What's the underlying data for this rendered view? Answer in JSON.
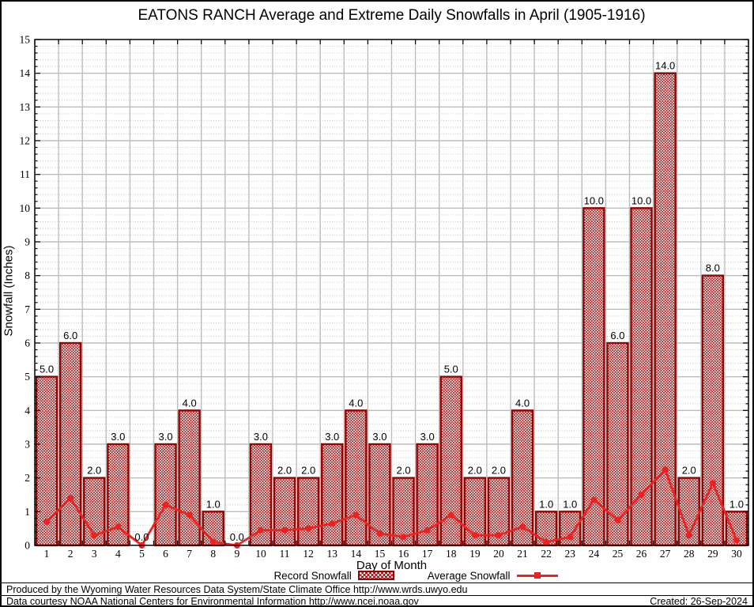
{
  "chart_data": {
    "type": "bar",
    "title": "EATONS RANCH Average and Extreme Daily Snowfalls in April (1905-1916)",
    "xlabel": "Day of Month",
    "ylabel": "Snowfall (Inches)",
    "ylim": [
      0,
      15
    ],
    "y_tick_step": 1,
    "y_minor_per_major": 5,
    "grid": {
      "major": true,
      "minor": true
    },
    "legend_position": "bottom",
    "categories": [
      1,
      2,
      3,
      4,
      5,
      6,
      7,
      8,
      9,
      10,
      11,
      12,
      13,
      14,
      15,
      16,
      17,
      18,
      19,
      20,
      21,
      22,
      23,
      24,
      25,
      26,
      27,
      28,
      29,
      30
    ],
    "series": [
      {
        "name": "Record Snowfall",
        "type": "bar",
        "color": "#990000",
        "values": [
          5,
          6,
          2,
          3,
          0,
          3,
          4,
          1,
          0,
          3,
          2,
          2,
          3,
          4,
          3,
          2,
          3,
          5,
          2,
          2,
          4,
          1,
          1,
          10,
          6,
          10,
          14,
          2,
          8,
          1
        ],
        "value_labels": [
          "5.0",
          "6.0",
          "2.0",
          "3.0",
          "0.0",
          "3.0",
          "4.0",
          "1.0",
          "0.0",
          "3.0",
          "2.0",
          "2.0",
          "3.0",
          "4.0",
          "3.0",
          "2.0",
          "3.0",
          "5.0",
          "2.0",
          "2.0",
          "4.0",
          "1.0",
          "1.0",
          "10.0",
          "6.0",
          "10.0",
          "14.0",
          "2.0",
          "8.0",
          "1.0"
        ]
      },
      {
        "name": "Average Snowfall",
        "type": "line",
        "color": "#ee2020",
        "values": [
          0.7,
          1.4,
          0.3,
          0.55,
          0.0,
          1.2,
          0.9,
          0.1,
          0.0,
          0.45,
          0.45,
          0.5,
          0.65,
          0.9,
          0.35,
          0.25,
          0.45,
          0.9,
          0.3,
          0.3,
          0.55,
          0.1,
          0.25,
          1.35,
          0.75,
          1.5,
          2.25,
          0.3,
          1.85,
          0.15
        ]
      }
    ]
  },
  "colors": {
    "bar": "#990000",
    "average_line": "#ee2020",
    "grid_major": "#bdbdbd",
    "grid_minor": "#c9c9c9",
    "axis": "#000000",
    "background": "#ffffff"
  },
  "footer": {
    "line1": "Produced by the Wyoming Water Resources Data System/State Climate Office http://www.wrds.uwyo.edu",
    "line2": "Data courtesy NOAA National Centers for Environmental Information http://www.ncei.noaa.gov",
    "created": "Created: 26-Sep-2024"
  }
}
